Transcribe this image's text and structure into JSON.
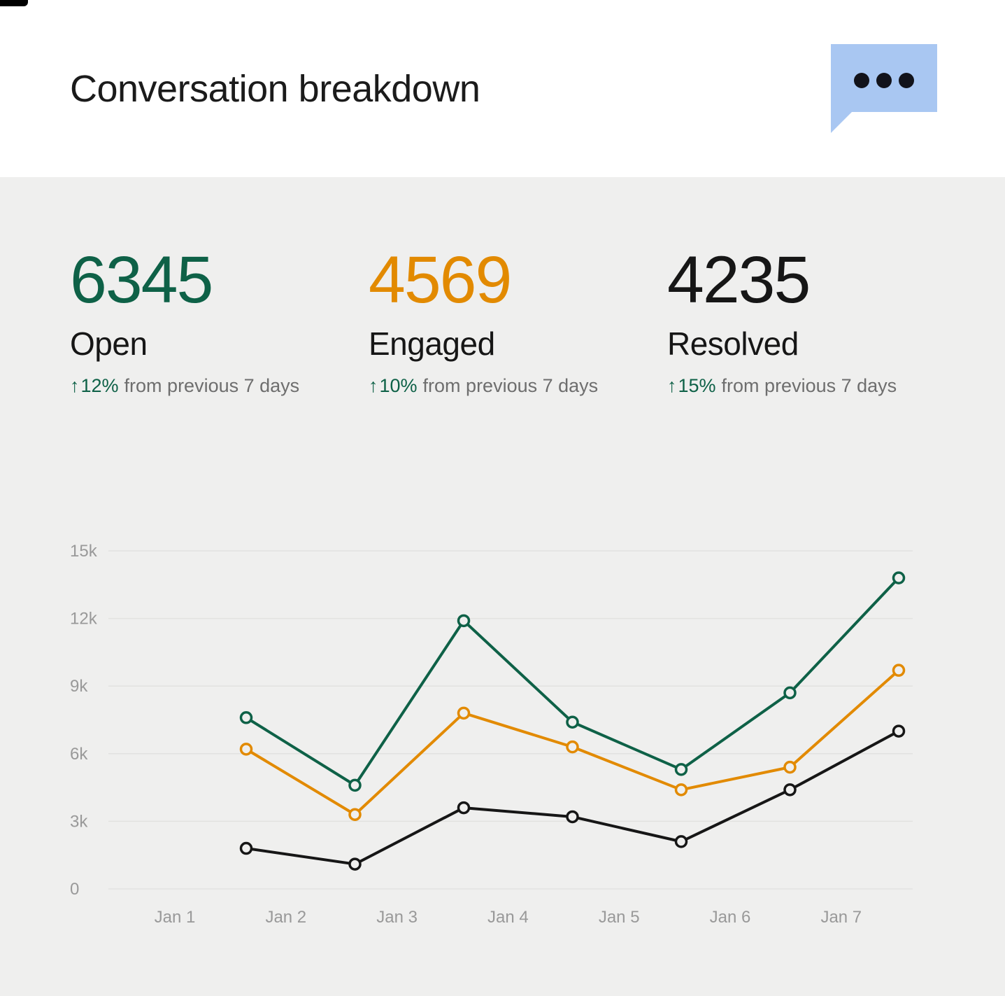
{
  "header": {
    "title": "Conversation breakdown",
    "chat_icon": {
      "name": "chat-bubble-menu-icon",
      "bg": "#A9C7F2",
      "dot_color": "#12131B"
    }
  },
  "icons": {
    "up_arrow": "↑"
  },
  "colors": {
    "open_green": "#0E6147",
    "engaged_orange": "#E28A00",
    "resolved_black": "#161616",
    "panel_bg": "#EFEFEE",
    "gridline": "#E2E2E0",
    "axis_label": "#999999",
    "delta_text": "#6E6E6E"
  },
  "stats": [
    {
      "value": "6345",
      "label": "Open",
      "delta": "12%",
      "delta_suffix": "from previous 7 days",
      "color": "#0E6147"
    },
    {
      "value": "4569",
      "label": "Engaged",
      "delta": "10%",
      "delta_suffix": "from previous 7 days",
      "color": "#E28A00"
    },
    {
      "value": "4235",
      "label": "Resolved",
      "delta": "15%",
      "delta_suffix": "from previous 7 days",
      "color": "#161616"
    }
  ],
  "chart_data": {
    "type": "line",
    "title": "",
    "x": [
      "Jan 1",
      "Jan 2",
      "Jan 3",
      "Jan 4",
      "Jan 5",
      "Jan 6",
      "Jan 7"
    ],
    "series": [
      {
        "name": "Open",
        "color": "#0E6147",
        "values": [
          7600,
          4600,
          11900,
          7400,
          5300,
          8700,
          13800
        ]
      },
      {
        "name": "Engaged",
        "color": "#E28A00",
        "values": [
          6200,
          3300,
          7800,
          6300,
          4400,
          5400,
          9700
        ]
      },
      {
        "name": "Resolved",
        "color": "#161616",
        "values": [
          1800,
          1100,
          3600,
          3200,
          2100,
          4400,
          7000
        ]
      }
    ],
    "ylim": [
      0,
      15000
    ],
    "ytick_values": [
      0,
      3000,
      6000,
      9000,
      12000,
      15000
    ],
    "yticks": [
      "0",
      "3k",
      "6k",
      "9k",
      "12k",
      "15k"
    ],
    "grid": true,
    "legend": "none"
  }
}
